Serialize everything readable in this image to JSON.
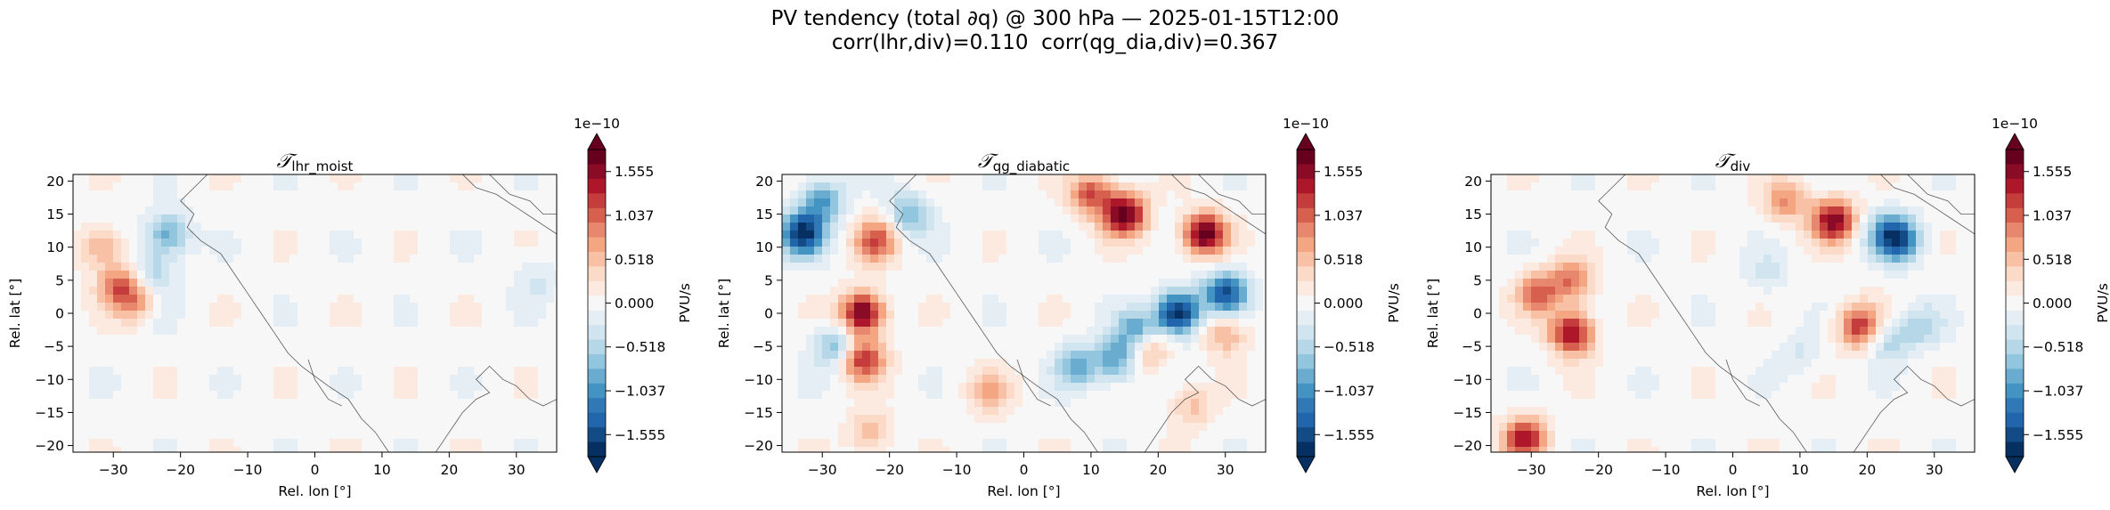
{
  "suptitle": {
    "line1": "PV tendency (total ∂q) @ 300 hPa — 2025-01-15T12:00",
    "line2": "corr(lhr,div)=0.110  corr(qg_dia,div)=0.367"
  },
  "chart_data": [
    {
      "type": "heatmap",
      "title_symbol": "𝒯",
      "title_subscript": "lhr_moist",
      "xlabel": "Rel. lon [°]",
      "ylabel": "Rel. lat [°]",
      "xlim": [
        -36,
        36
      ],
      "ylim": [
        -21,
        21
      ],
      "xticks": [
        -30,
        -20,
        -10,
        0,
        10,
        20,
        30
      ],
      "yticks": [
        -20,
        -15,
        -10,
        -5,
        0,
        5,
        10,
        15,
        20
      ],
      "features": [
        {
          "lon": -29,
          "lat": 4,
          "value": 1.0
        },
        {
          "lon": -32,
          "lat": 10,
          "value": 0.7
        },
        {
          "lon": -26,
          "lat": 1,
          "value": 0.9
        },
        {
          "lon": -22,
          "lat": 12,
          "value": -0.9
        },
        {
          "lon": -24,
          "lat": 6,
          "value": -0.6
        },
        {
          "lon": -25,
          "lat": 0,
          "value": -0.4
        },
        {
          "lon": 33,
          "lat": 5,
          "value": -0.3
        }
      ]
    },
    {
      "type": "heatmap",
      "title_symbol": "𝒯",
      "title_subscript": "qg_diabatic",
      "xlabel": "Rel. lon [°]",
      "ylabel": "Rel. lat [°]",
      "xlim": [
        -36,
        36
      ],
      "ylim": [
        -21,
        21
      ],
      "xticks": [
        -30,
        -20,
        -10,
        0,
        10,
        20,
        30
      ],
      "yticks": [
        -20,
        -15,
        -10,
        -5,
        0,
        5,
        10,
        15,
        20
      ],
      "features": [
        {
          "lon": -33,
          "lat": 12,
          "value": -1.8
        },
        {
          "lon": -30,
          "lat": 17,
          "value": -1.0
        },
        {
          "lon": -24,
          "lat": 0,
          "value": 1.8
        },
        {
          "lon": -24,
          "lat": -7,
          "value": 1.3
        },
        {
          "lon": -22,
          "lat": 11,
          "value": 1.1
        },
        {
          "lon": -28,
          "lat": -5,
          "value": -0.8
        },
        {
          "lon": -17,
          "lat": 15,
          "value": -0.8
        },
        {
          "lon": 15,
          "lat": 15,
          "value": 1.8
        },
        {
          "lon": 27,
          "lat": 12,
          "value": 1.8
        },
        {
          "lon": 10,
          "lat": 18,
          "value": 1.1
        },
        {
          "lon": 23,
          "lat": 0,
          "value": -1.9
        },
        {
          "lon": 30,
          "lat": 3,
          "value": -1.5
        },
        {
          "lon": 17,
          "lat": -3,
          "value": -1.3
        },
        {
          "lon": 18,
          "lat": -5,
          "value": 1.1
        },
        {
          "lon": 8,
          "lat": -8,
          "value": -0.9
        },
        {
          "lon": 14,
          "lat": -7,
          "value": -1.0
        },
        {
          "lon": 30,
          "lat": -3,
          "value": 0.7
        },
        {
          "lon": -5,
          "lat": -12,
          "value": 0.6
        },
        {
          "lon": 25,
          "lat": -14,
          "value": 0.5
        },
        {
          "lon": -23,
          "lat": -18,
          "value": 0.6
        }
      ]
    },
    {
      "type": "heatmap",
      "title_symbol": "𝒯",
      "title_subscript": "div",
      "xlabel": "Rel. lon [°]",
      "ylabel": "Rel. lat [°]",
      "xlim": [
        -36,
        36
      ],
      "ylim": [
        -21,
        21
      ],
      "xticks": [
        -30,
        -20,
        -10,
        0,
        10,
        20,
        30
      ],
      "yticks": [
        -20,
        -15,
        -10,
        -5,
        0,
        5,
        10,
        15,
        20
      ],
      "features": [
        {
          "lon": -29,
          "lat": 3,
          "value": 1.0
        },
        {
          "lon": -24,
          "lat": -3,
          "value": 1.6
        },
        {
          "lon": -24,
          "lat": 5,
          "value": 0.9
        },
        {
          "lon": 15,
          "lat": 14,
          "value": 1.6
        },
        {
          "lon": 8,
          "lat": 17,
          "value": 0.8
        },
        {
          "lon": 23,
          "lat": 12,
          "value": -0.9
        },
        {
          "lon": 25,
          "lat": 11,
          "value": -1.1
        },
        {
          "lon": 19,
          "lat": -2,
          "value": 1.3
        },
        {
          "lon": 23,
          "lat": -4,
          "value": -0.6
        },
        {
          "lon": 28,
          "lat": -2,
          "value": -0.5
        },
        {
          "lon": -31,
          "lat": -19,
          "value": 1.4
        },
        {
          "lon": 10,
          "lat": -6,
          "value": -0.3
        },
        {
          "lon": 5,
          "lat": 6,
          "value": -0.3
        }
      ]
    }
  ],
  "colorbar": {
    "label": "PVU/s",
    "offset_text": "1e−10",
    "extend": "both",
    "cmap": "RdBu_r",
    "levels": 21,
    "vmin": -1.815,
    "vmax": 1.815,
    "ticks": [
      1.555,
      1.037,
      0.518,
      0.0,
      -0.518,
      -1.037,
      -1.555
    ],
    "tick_labels": [
      "1.555",
      "1.037",
      "0.518",
      "0.000",
      "−0.518",
      "−1.037",
      "−1.555"
    ],
    "colors": [
      "#67001f",
      "#8a0b25",
      "#ae172a",
      "#c43c3c",
      "#d6604d",
      "#e7876e",
      "#f4a582",
      "#f8c0a4",
      "#fbdbc8",
      "#fce9df",
      "#f7f7f7",
      "#e4eef4",
      "#d1e5f0",
      "#b6d7e8",
      "#92c5de",
      "#6aacd0",
      "#4393c3",
      "#3079b6",
      "#2166ac",
      "#134b87",
      "#053061"
    ]
  }
}
